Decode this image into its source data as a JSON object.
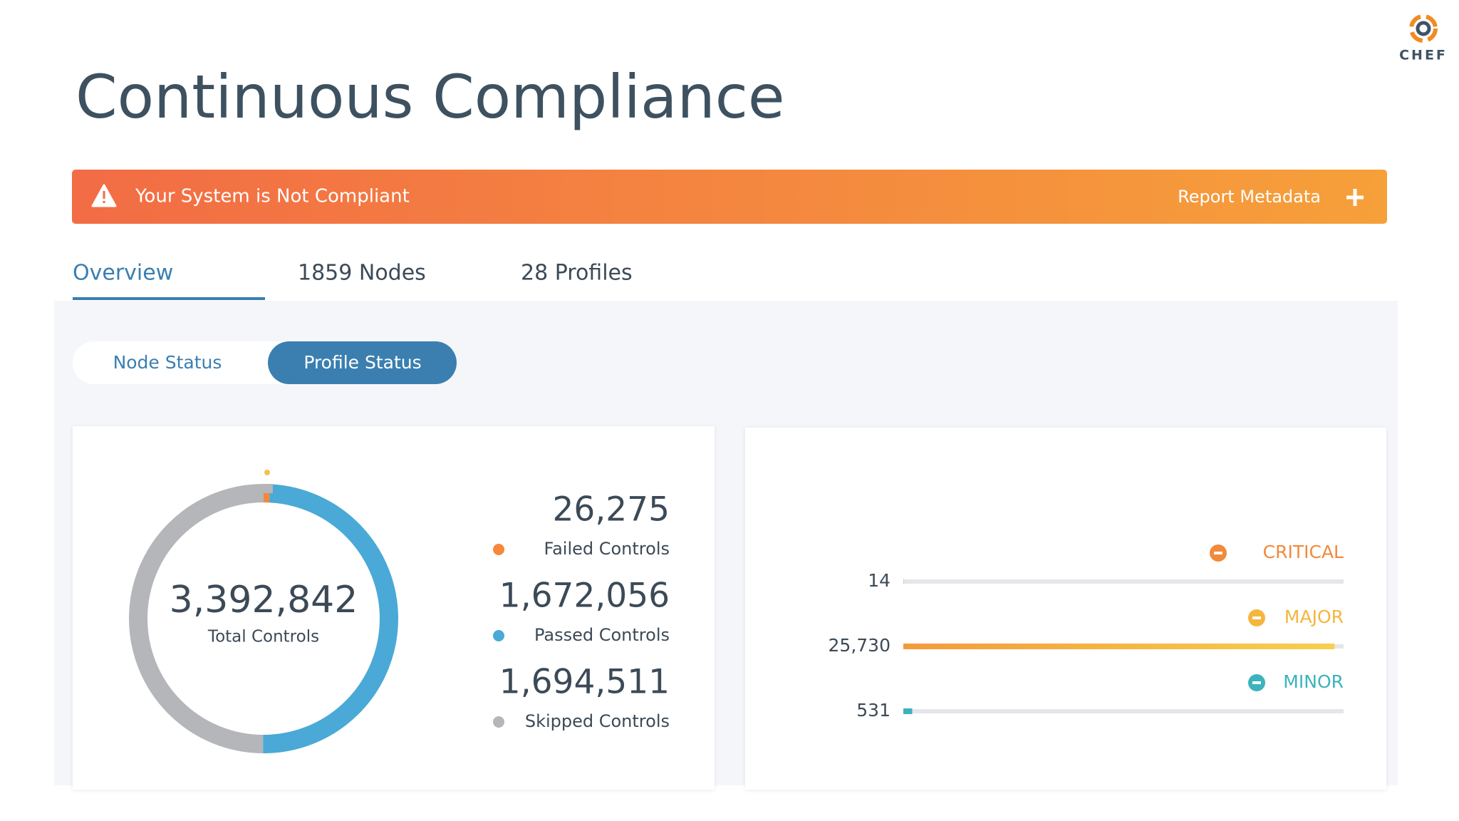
{
  "header": {
    "title": "Continuous Compliance",
    "logo": "CHEF"
  },
  "banner": {
    "message": "Your System is Not Compliant",
    "action": "Report Metadata"
  },
  "tabs": [
    {
      "label": "Overview",
      "active": true
    },
    {
      "label": "1859 Nodes",
      "active": false
    },
    {
      "label": "28 Profiles",
      "active": false
    }
  ],
  "toggle": [
    {
      "label": "Node Status",
      "active": false
    },
    {
      "label": "Profile Status",
      "active": true
    }
  ],
  "chart_data": [
    {
      "type": "donut",
      "total": {
        "value": 3392842,
        "label": "3,392,842"
      },
      "total_caption": "Total Controls",
      "segments": [
        {
          "name": "Failed Controls",
          "value": 26275,
          "value_label": "26,275",
          "color": "#f5883a"
        },
        {
          "name": "Passed Controls",
          "value": 1672056,
          "value_label": "1,672,056",
          "color": "#4aa9d6"
        },
        {
          "name": "Skipped Controls",
          "value": 1694511,
          "value_label": "1,694,511",
          "color": "#b4b6b9"
        }
      ]
    },
    {
      "type": "severity-bars",
      "items": [
        {
          "name": "CRITICAL",
          "value": 14,
          "value_label": "14",
          "color": "#f08a3c"
        },
        {
          "name": "MAJOR",
          "value": 25730,
          "value_label": "25,730",
          "color": "#f4b63e"
        },
        {
          "name": "MINOR",
          "value": 531,
          "value_label": "531",
          "color": "#3db3bd"
        }
      ]
    }
  ]
}
